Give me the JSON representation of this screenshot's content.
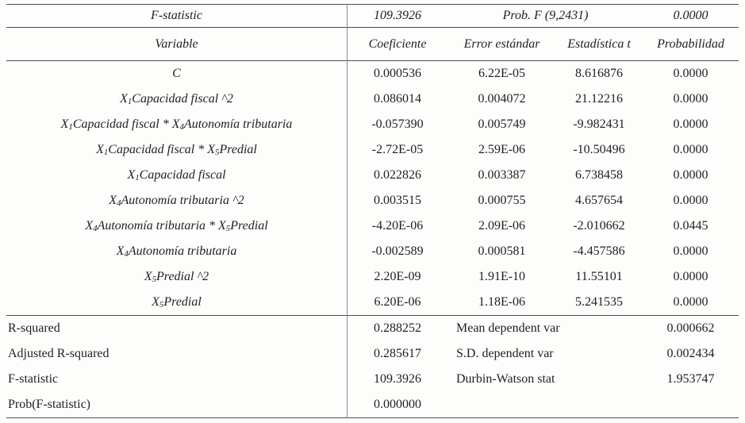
{
  "stat_header": {
    "label": "F-statistic",
    "value": "109.3926",
    "prob_label": "Prob. F (9,2431)",
    "prob_value": "0.0000"
  },
  "columns": {
    "variable": "Variable",
    "coefficient": "Coeficiente",
    "std_error": "Error estándar",
    "t_stat": "Estadística t",
    "probability": "Probabilidad"
  },
  "rows": [
    {
      "variable": "C",
      "coefficient": "0.000536",
      "std_error": "6.22E-05",
      "t_stat": "8.616876",
      "probability": "0.0000"
    },
    {
      "variable": "X_1 Capacidad fiscal ^2",
      "coefficient": "0.086014",
      "std_error": "0.004072",
      "t_stat": "21.12216",
      "probability": "0.0000"
    },
    {
      "variable": "X_1 Capacidad fiscal * X_4 Autonomía tributaria",
      "coefficient": "-0.057390",
      "std_error": "0.005749",
      "t_stat": "-9.982431",
      "probability": "0.0000"
    },
    {
      "variable": "X_1 Capacidad fiscal * X_5 Predial",
      "coefficient": "-2.72E-05",
      "std_error": "2.59E-06",
      "t_stat": "-10.50496",
      "probability": "0.0000"
    },
    {
      "variable": "X_1 Capacidad fiscal",
      "coefficient": "0.022826",
      "std_error": "0.003387",
      "t_stat": "6.738458",
      "probability": "0.0000"
    },
    {
      "variable": "X_4 Autonomía tributaria ^2",
      "coefficient": "0.003515",
      "std_error": "0.000755",
      "t_stat": "4.657654",
      "probability": "0.0000"
    },
    {
      "variable": "X_4 Autonomía tributaria * X_5 Predial",
      "coefficient": "-4.20E-06",
      "std_error": "2.09E-06",
      "t_stat": "-2.010662",
      "probability": "0.0445"
    },
    {
      "variable": "X_4 Autonomía tributaria",
      "coefficient": "-0.002589",
      "std_error": "0.000581",
      "t_stat": "-4.457586",
      "probability": "0.0000"
    },
    {
      "variable": "X_5 Predial ^2",
      "coefficient": "2.20E-09",
      "std_error": "1.91E-10",
      "t_stat": "11.55101",
      "probability": "0.0000"
    },
    {
      "variable": "X_5 Predial",
      "coefficient": "6.20E-06",
      "std_error": "1.18E-06",
      "t_stat": "5.241535",
      "probability": "0.0000"
    }
  ],
  "summary_rows": [
    {
      "left_label": "R-squared",
      "left_value": "0.288252",
      "right_label": "Mean dependent var",
      "right_value": "0.000662"
    },
    {
      "left_label": "Adjusted R-squared",
      "left_value": "0.285617",
      "right_label": "S.D. dependent var",
      "right_value": "0.002434"
    },
    {
      "left_label": "F-statistic",
      "left_value": "109.3926",
      "right_label": "Durbin-Watson stat",
      "right_value": "1.953747"
    },
    {
      "left_label": "Prob(F-statistic)",
      "left_value": "0.000000",
      "right_label": "",
      "right_value": ""
    }
  ]
}
